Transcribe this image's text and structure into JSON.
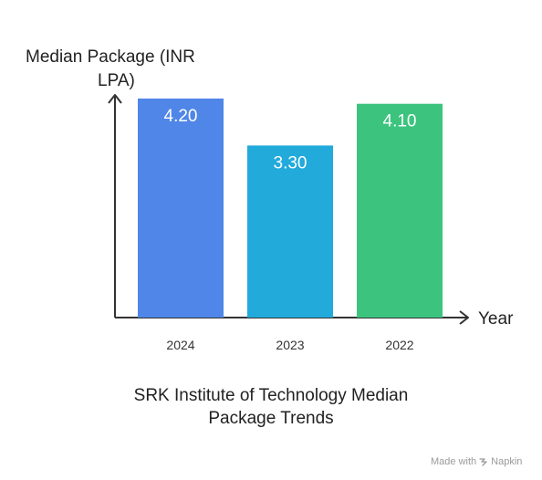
{
  "chart_data": {
    "type": "bar",
    "title": "SRK Institute of Technology Median Package Trends",
    "title_lines": [
      "SRK Institute of Technology Median",
      "Package Trends"
    ],
    "ylabel": "Median Package (INR LPA)",
    "ylabel_lines": [
      "Median Package (INR",
      "LPA)"
    ],
    "xlabel": "Year",
    "categories": [
      "2024",
      "2023",
      "2022"
    ],
    "values": [
      4.2,
      3.3,
      4.1
    ],
    "value_labels": [
      "4.20",
      "3.30",
      "4.10"
    ],
    "colors": [
      "#4F86E8",
      "#22AADB",
      "#3CC47F"
    ],
    "ylim": [
      0,
      4.2
    ],
    "grid": false,
    "legend": "none"
  },
  "footer": {
    "made_with": "Made with",
    "brand": "Napkin",
    "brand_icon": "napkin-logo-icon"
  }
}
